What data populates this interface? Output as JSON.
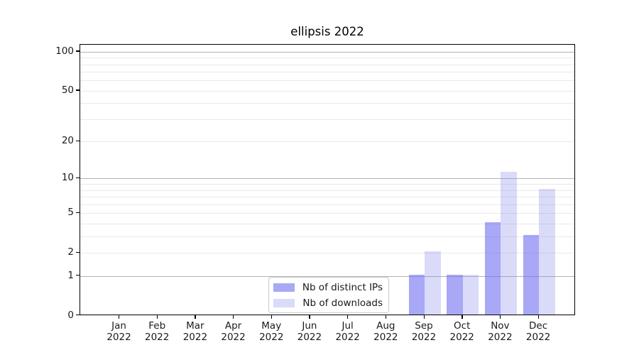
{
  "chart_data": {
    "type": "bar",
    "title": "ellipsis 2022",
    "categories": [
      "Jan 2022",
      "Feb 2022",
      "Mar 2022",
      "Apr 2022",
      "May 2022",
      "Jun 2022",
      "Jul 2022",
      "Aug 2022",
      "Sep 2022",
      "Oct 2022",
      "Nov 2022",
      "Dec 2022"
    ],
    "series": [
      {
        "name": "Nb of distinct IPs",
        "color": "#a8a8f7",
        "color_base": "#6e6ef0",
        "alpha": 0.6,
        "values": [
          0,
          0,
          0,
          0,
          0,
          0,
          0,
          0,
          1,
          1,
          4,
          3
        ]
      },
      {
        "name": "Nb of downloads",
        "color": "#dadaf9",
        "color_base": "#8484eb",
        "alpha": 0.3,
        "values": [
          0,
          0,
          0,
          0,
          0,
          0,
          0,
          0,
          2,
          1,
          11,
          8
        ]
      }
    ],
    "xlabel": "",
    "ylabel": "",
    "yscale": "log1p",
    "yticks": [
      0,
      1,
      2,
      5,
      10,
      20,
      50,
      100
    ],
    "yticks_major_grid": [
      1,
      10,
      100
    ],
    "yticks_minor_grid": [
      2,
      3,
      4,
      5,
      6,
      7,
      8,
      9,
      20,
      30,
      40,
      50,
      60,
      70,
      80,
      90
    ],
    "ylim": [
      0,
      113
    ],
    "grid": true,
    "legend_position": "lower center",
    "colors": {
      "axis": "#000000",
      "major_grid": "#b2b2b2",
      "minor_grid": "#e9e9e9",
      "text": "#1a1a1a"
    }
  }
}
